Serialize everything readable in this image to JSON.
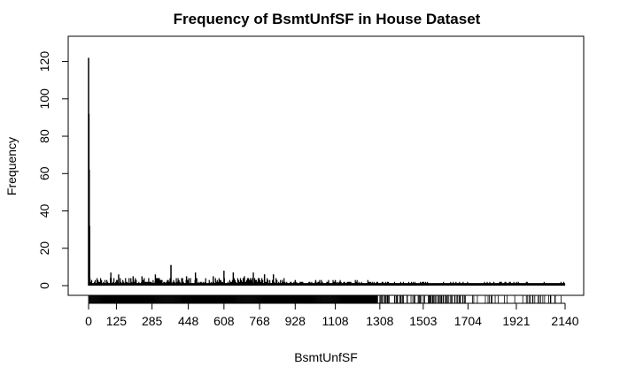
{
  "chart_data": {
    "type": "bar",
    "title": "Frequency of BsmtUnfSF in House Dataset",
    "xlabel": "BsmtUnfSF",
    "ylabel": "Frequency",
    "xlim": [
      0,
      2140
    ],
    "ylim": [
      0,
      125
    ],
    "x_ticks": [
      "0",
      "125",
      "285",
      "448",
      "608",
      "768",
      "928",
      "1108",
      "1308",
      "1503",
      "1704",
      "1921",
      "2140"
    ],
    "y_ticks": [
      0,
      20,
      40,
      60,
      80,
      100,
      120
    ],
    "grid": false,
    "legend": "none",
    "peaks": [
      {
        "x": 0,
        "y": 122
      },
      {
        "x": 100,
        "y": 7
      },
      {
        "x": 135,
        "y": 6
      },
      {
        "x": 200,
        "y": 5
      },
      {
        "x": 240,
        "y": 5
      },
      {
        "x": 300,
        "y": 6
      },
      {
        "x": 370,
        "y": 11
      },
      {
        "x": 440,
        "y": 5
      },
      {
        "x": 480,
        "y": 7
      },
      {
        "x": 560,
        "y": 5
      },
      {
        "x": 608,
        "y": 8
      },
      {
        "x": 650,
        "y": 7
      },
      {
        "x": 700,
        "y": 5
      },
      {
        "x": 740,
        "y": 7
      },
      {
        "x": 790,
        "y": 6
      },
      {
        "x": 830,
        "y": 6
      },
      {
        "x": 928,
        "y": 3
      },
      {
        "x": 1020,
        "y": 3
      },
      {
        "x": 1108,
        "y": 3
      },
      {
        "x": 1820,
        "y": 2
      }
    ]
  }
}
